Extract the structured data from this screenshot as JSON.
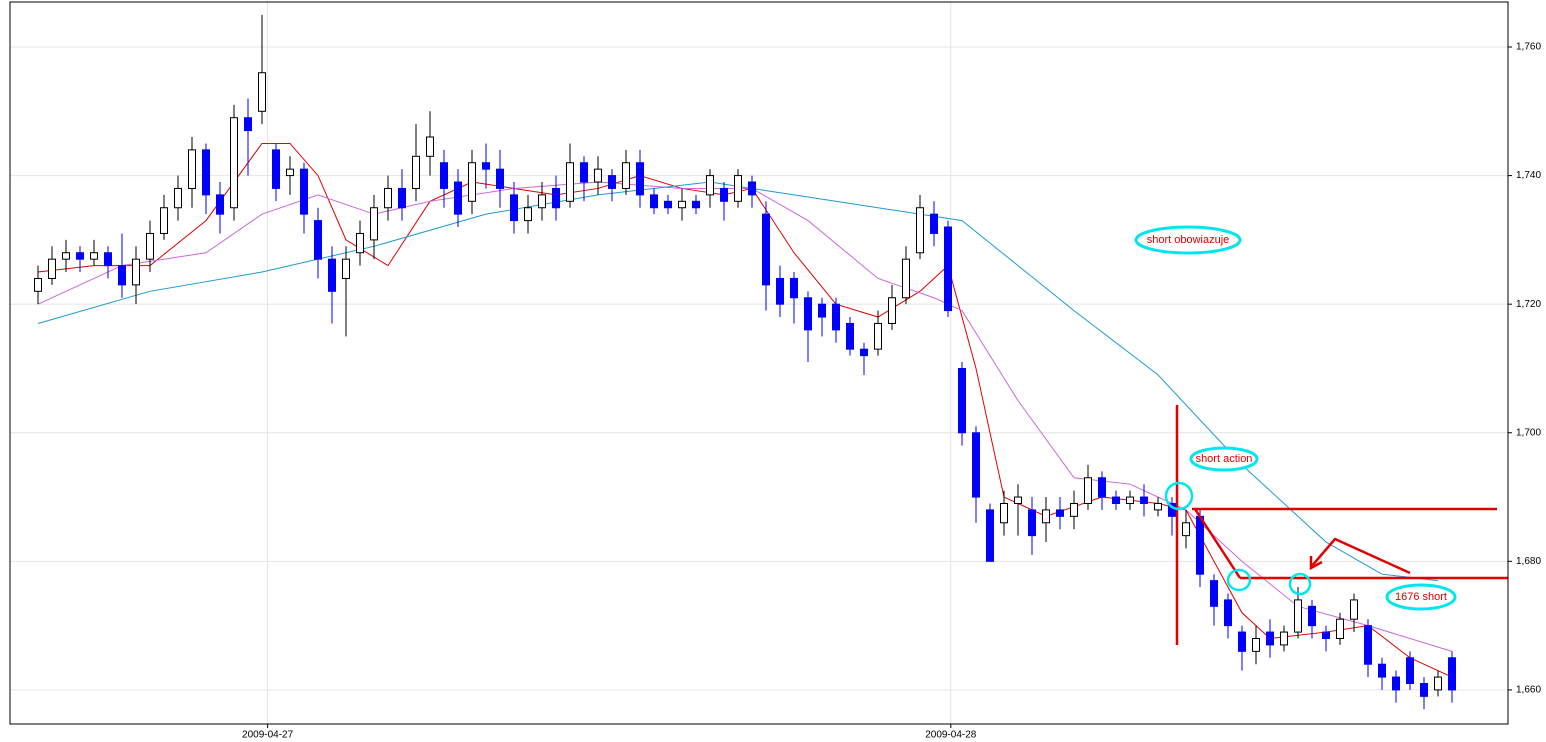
{
  "chart_data": {
    "type": "candlestick",
    "x": [
      0,
      1,
      2,
      3,
      4,
      5,
      6,
      7,
      8,
      9,
      10,
      11,
      12,
      13,
      14,
      15,
      16,
      17,
      18,
      19,
      20,
      21,
      22,
      23,
      24,
      25,
      26,
      27,
      28,
      29,
      30,
      31,
      32,
      33,
      34,
      35,
      36,
      37,
      38,
      39,
      40,
      41,
      42,
      43,
      44,
      45,
      46,
      47,
      48,
      49,
      50,
      51,
      52,
      53,
      54,
      55,
      56,
      57,
      58,
      59,
      60,
      61,
      62,
      63,
      64,
      65,
      66,
      67,
      68,
      69,
      70,
      71,
      72,
      73,
      74,
      75,
      76,
      77,
      78,
      79,
      80,
      81,
      82,
      83,
      84,
      85,
      86,
      87,
      88,
      89,
      90,
      91,
      92,
      93,
      94,
      95,
      96,
      97,
      98,
      99,
      100,
      101
    ],
    "open": [
      1722,
      1724,
      1727,
      1728,
      1727,
      1728,
      1726,
      1723,
      1727,
      1731,
      1735,
      1738,
      1744,
      1737,
      1735,
      1749,
      1750,
      1744,
      1740,
      1741,
      1733,
      1727,
      1724,
      1728,
      1730,
      1735,
      1738,
      1738,
      1743,
      1742,
      1739,
      1736,
      1742,
      1741,
      1737,
      1733,
      1735,
      1738,
      1736,
      1742,
      1739,
      1740,
      1738,
      1742,
      1737,
      1736,
      1735,
      1736,
      1737,
      1738,
      1736,
      1739,
      1734,
      1724,
      1724,
      1721,
      1720,
      1720,
      1717,
      1713,
      1713,
      1717,
      1721,
      1728,
      1734,
      1732,
      1710,
      1700,
      1688,
      1686,
      1689,
      1688,
      1686,
      1688,
      1687,
      1689,
      1693,
      1690,
      1689,
      1690,
      1688,
      1689,
      1684,
      1687,
      1677,
      1674,
      1669,
      1666,
      1669,
      1667,
      1669,
      1673,
      1669,
      1668,
      1671,
      1670,
      1664,
      1662,
      1665,
      1661,
      1660,
      1665
    ],
    "high": [
      1726,
      1729,
      1730,
      1729,
      1730,
      1729,
      1731,
      1729,
      1733,
      1737,
      1740,
      1746,
      1745,
      1739,
      1751,
      1752,
      1765,
      1745,
      1743,
      1742,
      1735,
      1729,
      1729,
      1733,
      1737,
      1740,
      1741,
      1748,
      1750,
      1744,
      1741,
      1744,
      1745,
      1744,
      1739,
      1737,
      1739,
      1740,
      1745,
      1743,
      1743,
      1741,
      1744,
      1744,
      1738,
      1737,
      1738,
      1737,
      1741,
      1739,
      1741,
      1740,
      1736,
      1726,
      1725,
      1722,
      1721,
      1721,
      1718,
      1714,
      1719,
      1723,
      1729,
      1737,
      1736,
      1733,
      1711,
      1701,
      1689,
      1691,
      1692,
      1690,
      1690,
      1690,
      1691,
      1695,
      1694,
      1691,
      1691,
      1692,
      1690,
      1690,
      1688,
      1688,
      1678,
      1675,
      1670,
      1670,
      1671,
      1670,
      1676,
      1674,
      1670,
      1672,
      1675,
      1671,
      1665,
      1663,
      1666,
      1662,
      1663,
      1666
    ],
    "low": [
      1720,
      1723,
      1725,
      1725,
      1726,
      1724,
      1721,
      1720,
      1725,
      1730,
      1733,
      1735,
      1734,
      1731,
      1733,
      1740,
      1748,
      1736,
      1737,
      1731,
      1724,
      1717,
      1715,
      1726,
      1727,
      1733,
      1733,
      1736,
      1740,
      1735,
      1732,
      1734,
      1738,
      1735,
      1731,
      1731,
      1733,
      1733,
      1735,
      1736,
      1737,
      1736,
      1737,
      1735,
      1734,
      1734,
      1733,
      1734,
      1735,
      1733,
      1735,
      1735,
      1719,
      1718,
      1717,
      1711,
      1715,
      1714,
      1712,
      1709,
      1712,
      1716,
      1720,
      1727,
      1729,
      1718,
      1698,
      1686,
      1680,
      1684,
      1684,
      1681,
      1683,
      1685,
      1685,
      1688,
      1688,
      1688,
      1688,
      1687,
      1687,
      1684,
      1682,
      1676,
      1670,
      1668,
      1663,
      1664,
      1665,
      1666,
      1668,
      1668,
      1666,
      1667,
      1669,
      1662,
      1660,
      1658,
      1660,
      1657,
      1659,
      1658
    ],
    "close": [
      1724,
      1727,
      1728,
      1727,
      1728,
      1726,
      1723,
      1727,
      1731,
      1735,
      1738,
      1744,
      1737,
      1734,
      1749,
      1747,
      1756,
      1738,
      1741,
      1734,
      1727,
      1722,
      1727,
      1731,
      1735,
      1738,
      1735,
      1743,
      1746,
      1738,
      1734,
      1742,
      1741,
      1738,
      1733,
      1735,
      1737,
      1735,
      1742,
      1739,
      1741,
      1738,
      1742,
      1737,
      1735,
      1735,
      1736,
      1735,
      1740,
      1736,
      1740,
      1737,
      1723,
      1720,
      1721,
      1716,
      1718,
      1716,
      1713,
      1712,
      1717,
      1721,
      1727,
      1735,
      1731,
      1719,
      1700,
      1690,
      1680,
      1689,
      1690,
      1684,
      1688,
      1687,
      1689,
      1693,
      1690,
      1689,
      1690,
      1689,
      1689,
      1687,
      1686,
      1678,
      1673,
      1670,
      1666,
      1668,
      1667,
      1669,
      1674,
      1670,
      1668,
      1671,
      1674,
      1664,
      1662,
      1660,
      1661,
      1659,
      1662,
      1660
    ],
    "up_color": "#ffffff",
    "down_color": "#0000ff",
    "lines": [
      {
        "color": "#e00000",
        "x": [
          0,
          4,
          8,
          12,
          16,
          18,
          20,
          22,
          25,
          28,
          31,
          34,
          37,
          40,
          43,
          46,
          49,
          51,
          54,
          57,
          60,
          63,
          65,
          67,
          69,
          72,
          76,
          80,
          82,
          86,
          88,
          92,
          95,
          98,
          101
        ],
        "values": [
          1725,
          1726,
          1726,
          1733,
          1745,
          1745,
          1740,
          1730,
          1726,
          1736,
          1739,
          1738,
          1737,
          1738,
          1740,
          1738,
          1737,
          1738,
          1728,
          1720,
          1718,
          1722,
          1726,
          1710,
          1690,
          1687,
          1690,
          1689,
          1688,
          1672,
          1668,
          1669,
          1670,
          1665,
          1662
        ]
      },
      {
        "color": "#cc66dd",
        "x": [
          0,
          6,
          12,
          16,
          20,
          24,
          28,
          34,
          40,
          46,
          51,
          55,
          60,
          64,
          66,
          70,
          74,
          78,
          82,
          86,
          90,
          95,
          101
        ],
        "values": [
          1720,
          1726,
          1728,
          1734,
          1737,
          1734,
          1736,
          1738,
          1739,
          1738,
          1738,
          1733,
          1724,
          1721,
          1719,
          1705,
          1693,
          1692,
          1688,
          1680,
          1673,
          1670,
          1666
        ]
      },
      {
        "color": "#1e9ad6",
        "x": [
          0,
          8,
          16,
          24,
          32,
          40,
          48,
          54,
          60,
          66,
          74,
          80,
          86,
          92,
          96,
          100
        ],
        "values": [
          1717,
          1722,
          1725,
          1729,
          1734,
          1737,
          1739,
          1737,
          1735,
          1733,
          1719,
          1709,
          1695,
          1683,
          1678,
          1677
        ]
      }
    ],
    "xlim": [
      -2,
      105
    ],
    "xticks": [
      {
        "value": 16.4,
        "label": "2009-04-27"
      },
      {
        "value": 65.2,
        "label": "2009-04-28"
      }
    ],
    "ylim": [
      1654.7,
      1767
    ],
    "yticks": [
      {
        "value": 1660,
        "label": "1,660"
      },
      {
        "value": 1680,
        "label": "1,680"
      },
      {
        "value": 1700,
        "label": "1,700"
      },
      {
        "value": 1720,
        "label": "1,720"
      },
      {
        "value": 1740,
        "label": "1,740"
      },
      {
        "value": 1760,
        "label": "1,760"
      }
    ],
    "grid": true,
    "annotations": [
      {
        "text": "short obowiazuje"
      },
      {
        "text": "short action"
      },
      {
        "text": "1676 short"
      }
    ]
  }
}
